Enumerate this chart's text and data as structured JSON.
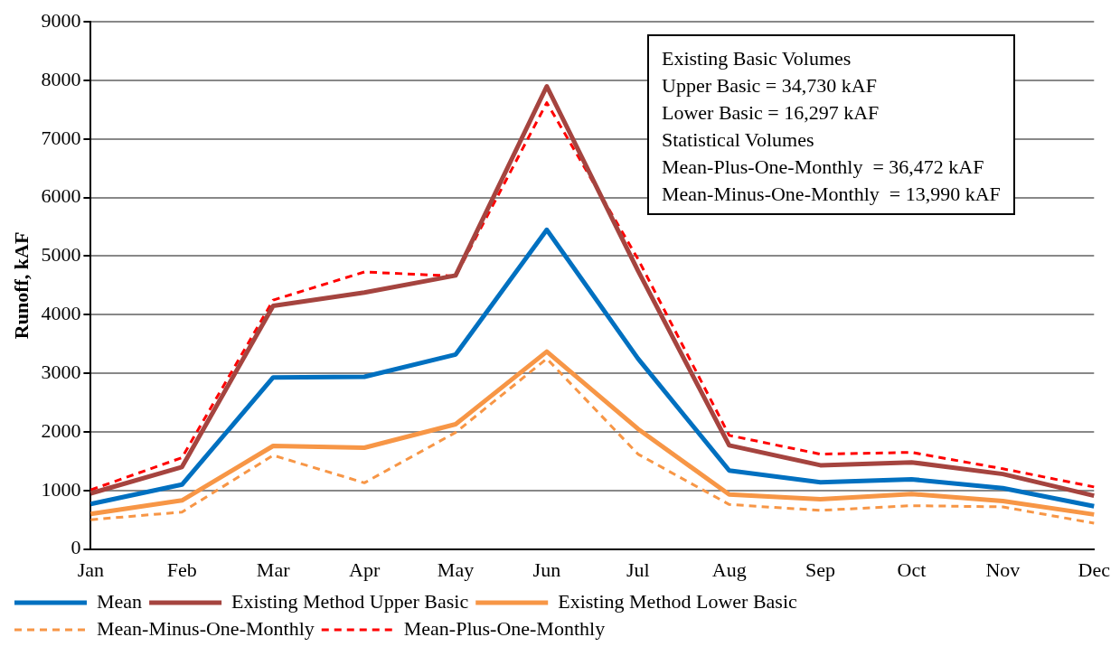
{
  "chart_data": {
    "type": "line",
    "ylabel": "Runoff, kAF",
    "categories": [
      "Jan",
      "Feb",
      "Mar",
      "Apr",
      "May",
      "Jun",
      "Jul",
      "Aug",
      "Sep",
      "Oct",
      "Nov",
      "Dec"
    ],
    "series": [
      {
        "name": "Mean",
        "color": "#0070c0",
        "line_style": "solid",
        "values": [
          770,
          1100,
          2930,
          2940,
          3320,
          5450,
          3250,
          1340,
          1140,
          1190,
          1040,
          730
        ]
      },
      {
        "name": "Existing Method Upper Basic",
        "color": "#a5443f",
        "line_style": "solid",
        "values": [
          950,
          1400,
          4150,
          4380,
          4670,
          7900,
          4750,
          1770,
          1430,
          1480,
          1280,
          910
        ]
      },
      {
        "name": "Existing Method Lower Basic",
        "color": "#f79646",
        "line_style": "solid",
        "values": [
          600,
          830,
          1760,
          1730,
          2130,
          3370,
          2050,
          930,
          850,
          940,
          820,
          590
        ]
      },
      {
        "name": "Mean-Minus-One-Monthly",
        "color": "#f79646",
        "line_style": "dashed",
        "values": [
          500,
          630,
          1600,
          1130,
          1990,
          3250,
          1620,
          760,
          660,
          740,
          720,
          440
        ]
      },
      {
        "name": "Mean-Plus-One-Monthly",
        "color": "#ff0000",
        "line_style": "dashed",
        "values": [
          1010,
          1560,
          4250,
          4730,
          4660,
          7620,
          4950,
          1940,
          1620,
          1650,
          1370,
          1060
        ]
      }
    ],
    "ylim": [
      0,
      9000
    ],
    "yticks": [
      0,
      1000,
      2000,
      3000,
      4000,
      5000,
      6000,
      7000,
      8000,
      9000
    ],
    "grid": "y",
    "legend": "bottom",
    "marker": "none",
    "annotations": [
      "Existing Basic Volumes",
      "Upper Basic = 34,730 kAF",
      "Lower Basic = 16,297 kAF",
      "Statistical Volumes",
      "Mean-Plus-One-Monthly  = 36,472 kAF",
      "Mean-Minus-One-Monthly  = 13,990 kAF"
    ]
  }
}
